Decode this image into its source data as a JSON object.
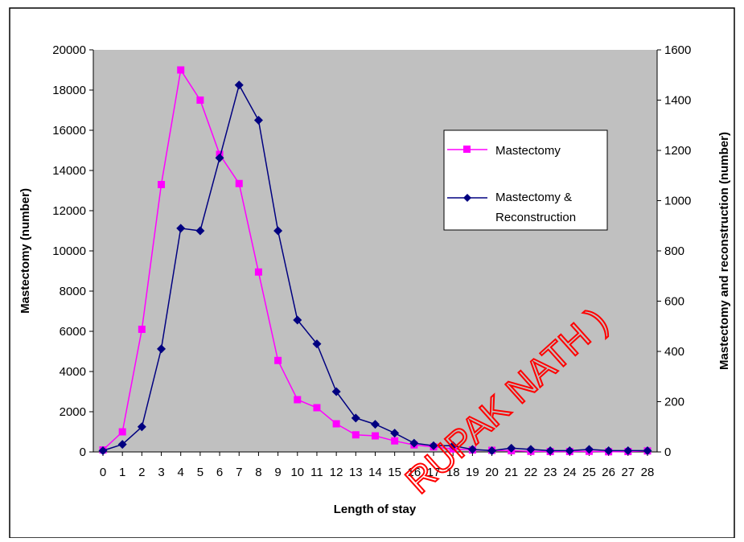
{
  "chart_data": {
    "type": "line",
    "xlabel": "Length of stay",
    "ylabel_left": "Mastectomy (number)",
    "ylabel_right": "Mastectomy and reconstruction (number)",
    "ylim_left": [
      0,
      20000
    ],
    "ylim_right": [
      0,
      1600
    ],
    "yticks_left": [
      "0",
      "2000",
      "4000",
      "6000",
      "8000",
      "10000",
      "12000",
      "14000",
      "16000",
      "18000",
      "20000"
    ],
    "yticks_right": [
      "0",
      "200",
      "400",
      "600",
      "800",
      "1000",
      "1200",
      "1400",
      "1600"
    ],
    "categories": [
      "0",
      "1",
      "2",
      "3",
      "4",
      "5",
      "6",
      "7",
      "8",
      "9",
      "10",
      "11",
      "12",
      "13",
      "14",
      "15",
      "16",
      "17",
      "18",
      "19",
      "20",
      "21",
      "22",
      "23",
      "24",
      "25",
      "26",
      "27",
      "28"
    ],
    "grid": false,
    "legend_position": "right",
    "series": [
      {
        "name": "Mastectomy",
        "axis": "left",
        "color": "#ff00ff",
        "marker": "square",
        "values": [
          100,
          1000,
          6100,
          13300,
          19000,
          17500,
          14800,
          13350,
          8950,
          4550,
          2600,
          2200,
          1400,
          850,
          800,
          550,
          350,
          250,
          150,
          100,
          80,
          60,
          30,
          20,
          20,
          30,
          10,
          20,
          50
        ]
      },
      {
        "name": "Mastectomy & Reconstruction",
        "axis": "right",
        "color": "#000080",
        "marker": "diamond",
        "values": [
          5,
          30,
          100,
          410,
          890,
          880,
          1170,
          1460,
          1320,
          880,
          525,
          430,
          240,
          135,
          110,
          75,
          35,
          25,
          25,
          10,
          5,
          15,
          10,
          5,
          5,
          10,
          5,
          5,
          5
        ]
      }
    ],
    "legend": {
      "entries": [
        "Mastectomy",
        "Mastectomy &",
        "Reconstruction"
      ]
    },
    "watermark": "RUPAK NATH )"
  }
}
